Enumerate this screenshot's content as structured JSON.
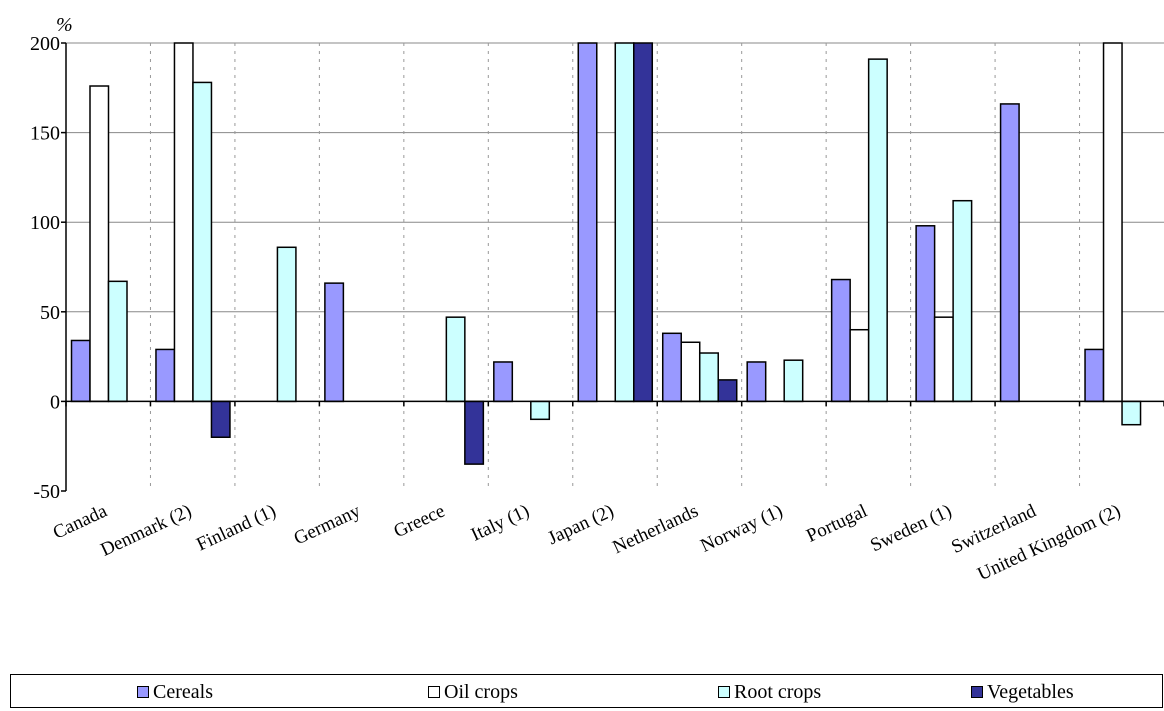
{
  "chart_data": {
    "type": "bar",
    "ylabel": "%",
    "ylim": [
      -50,
      200
    ],
    "yticks": [
      -50,
      0,
      50,
      100,
      150,
      200
    ],
    "ytick_labels": [
      "-50",
      "0",
      "50",
      "100",
      "150",
      "200"
    ],
    "grid": true,
    "legend_position": "bottom",
    "categories": [
      "Canada",
      "Denmark (2)",
      "Finland (1)",
      "Germany",
      "Greece",
      "Italy (1)",
      "Japan (2)",
      "Netherlands",
      "Norway (1)",
      "Portugal",
      "Sweden (1)",
      "Switzerland",
      "United Kingdom  (2)"
    ],
    "series": [
      {
        "name": "Cereals",
        "color": "#9999ff",
        "values": [
          34,
          29,
          null,
          66,
          null,
          22,
          210,
          38,
          22,
          68,
          98,
          166,
          29
        ]
      },
      {
        "name": "Oil crops",
        "color": "#ffffff",
        "values": [
          176,
          210,
          null,
          null,
          null,
          null,
          null,
          33,
          null,
          40,
          47,
          null,
          210
        ]
      },
      {
        "name": "Root crops",
        "color": "#ccffff",
        "values": [
          67,
          178,
          86,
          null,
          47,
          -10,
          210,
          27,
          23,
          191,
          112,
          null,
          -13
        ]
      },
      {
        "name": "Vegetables",
        "color": "#333399",
        "values": [
          null,
          -20,
          null,
          null,
          -35,
          null,
          210,
          12,
          null,
          null,
          null,
          null,
          null
        ]
      }
    ]
  }
}
